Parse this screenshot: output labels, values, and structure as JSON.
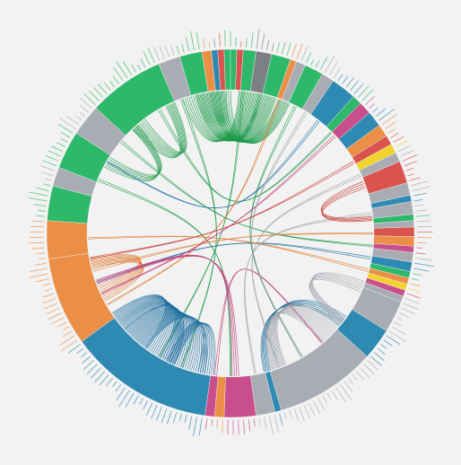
{
  "colors": {
    "background": "#f2f2f2",
    "inner": "#f2f2f2",
    "green": "#2db86a",
    "blue": "#2e8ab3",
    "orange": "#ea8f45",
    "pink": "#c94f8c",
    "gray": "#a9adb3",
    "red": "#d9534f",
    "yellow": "#f2d22e",
    "darkgray": "#7c7f84",
    "link_green": "#1c9a4a",
    "link_blue": "#1e6fa0",
    "link_orange": "#e0792d",
    "link_pink": "#c23b7a",
    "link_gray": "#9ea2a8",
    "link_red": "#c9302c"
  },
  "groups": [
    {
      "start": 262,
      "end": 274,
      "color": "orange"
    },
    {
      "start": 274,
      "end": 285,
      "color": "green"
    },
    {
      "start": 285,
      "end": 291,
      "color": "gray"
    },
    {
      "start": 291,
      "end": 303,
      "color": "green"
    },
    {
      "start": 303,
      "end": 313,
      "color": "gray"
    },
    {
      "start": 313,
      "end": 337,
      "color": "green"
    },
    {
      "start": 337,
      "end": 344,
      "color": "gray"
    },
    {
      "start": 344,
      "end": 351,
      "color": "green"
    },
    {
      "start": 351,
      "end": 354,
      "color": "orange"
    },
    {
      "start": 354,
      "end": 356,
      "color": "blue"
    },
    {
      "start": 356,
      "end": 358,
      "color": "red"
    },
    {
      "start": 358,
      "end": 360,
      "color": "green"
    },
    {
      "start": 0,
      "end": 2,
      "color": "green"
    },
    {
      "start": 2,
      "end": 4,
      "color": "red"
    },
    {
      "start": 4,
      "end": 8,
      "color": "green"
    },
    {
      "start": 8,
      "end": 13,
      "color": "darkgray"
    },
    {
      "start": 13,
      "end": 19,
      "color": "green"
    },
    {
      "start": 19,
      "end": 21,
      "color": "orange"
    },
    {
      "start": 21,
      "end": 24,
      "color": "gray"
    },
    {
      "start": 24,
      "end": 30,
      "color": "green"
    },
    {
      "start": 30,
      "end": 34,
      "color": "gray"
    },
    {
      "start": 34,
      "end": 42,
      "color": "blue"
    },
    {
      "start": 42,
      "end": 45,
      "color": "green"
    },
    {
      "start": 45,
      "end": 49,
      "color": "pink"
    },
    {
      "start": 49,
      "end": 54,
      "color": "blue"
    },
    {
      "start": 54,
      "end": 58,
      "color": "orange"
    },
    {
      "start": 58,
      "end": 61,
      "color": "red"
    },
    {
      "start": 61,
      "end": 64,
      "color": "yellow"
    },
    {
      "start": 64,
      "end": 67,
      "color": "gray"
    },
    {
      "start": 67,
      "end": 74,
      "color": "red"
    },
    {
      "start": 74,
      "end": 78,
      "color": "gray"
    },
    {
      "start": 78,
      "end": 80,
      "color": "blue"
    },
    {
      "start": 80,
      "end": 84,
      "color": "gray"
    },
    {
      "start": 84,
      "end": 86,
      "color": "green"
    },
    {
      "start": 86,
      "end": 88,
      "color": "gray"
    },
    {
      "start": 88,
      "end": 91,
      "color": "red"
    },
    {
      "start": 91,
      "end": 94,
      "color": "orange"
    },
    {
      "start": 94,
      "end": 96,
      "color": "pink"
    },
    {
      "start": 96,
      "end": 99,
      "color": "gray"
    },
    {
      "start": 99,
      "end": 102,
      "color": "blue"
    },
    {
      "start": 102,
      "end": 104,
      "color": "green"
    },
    {
      "start": 104,
      "end": 106,
      "color": "orange"
    },
    {
      "start": 106,
      "end": 108,
      "color": "yellow"
    },
    {
      "start": 108,
      "end": 110,
      "color": "pink"
    },
    {
      "start": 110,
      "end": 112,
      "color": "gray"
    },
    {
      "start": 112,
      "end": 122,
      "color": "gray"
    },
    {
      "start": 122,
      "end": 132,
      "color": "blue"
    },
    {
      "start": 132,
      "end": 164,
      "color": "gray"
    },
    {
      "start": 164,
      "end": 166,
      "color": "blue"
    },
    {
      "start": 166,
      "end": 172,
      "color": "gray"
    },
    {
      "start": 172,
      "end": 182,
      "color": "pink"
    },
    {
      "start": 182,
      "end": 185,
      "color": "orange"
    },
    {
      "start": 185,
      "end": 188,
      "color": "pink"
    },
    {
      "start": 188,
      "end": 234,
      "color": "blue"
    },
    {
      "start": 234,
      "end": 262,
      "color": "orange"
    }
  ],
  "links": [
    {
      "color": "link_green",
      "a": 348,
      "b": 8,
      "w": 18
    },
    {
      "color": "link_green",
      "a": 352,
      "b": 15,
      "w": 14
    },
    {
      "color": "link_green",
      "a": 356,
      "b": 22,
      "w": 10
    },
    {
      "color": "link_green",
      "a": 320,
      "b": 335,
      "w": 8
    },
    {
      "color": "link_green",
      "a": 300,
      "b": 318,
      "w": 6
    },
    {
      "color": "link_green",
      "a": 330,
      "b": 45,
      "w": 2
    },
    {
      "color": "link_green",
      "a": 310,
      "b": 95,
      "w": 2
    },
    {
      "color": "link_green",
      "a": 292,
      "b": 180,
      "w": 2
    },
    {
      "color": "link_green",
      "a": 340,
      "b": 200,
      "w": 2
    },
    {
      "color": "link_green",
      "a": 5,
      "b": 210,
      "w": 2
    },
    {
      "color": "link_green",
      "a": 27,
      "b": 150,
      "w": 2
    },
    {
      "color": "link_blue",
      "a": 200,
      "b": 222,
      "w": 22
    },
    {
      "color": "link_blue",
      "a": 210,
      "b": 232,
      "w": 16
    },
    {
      "color": "link_blue",
      "a": 190,
      "b": 205,
      "w": 8
    },
    {
      "color": "link_blue",
      "a": 128,
      "b": 165,
      "w": 6
    },
    {
      "color": "link_blue",
      "a": 38,
      "b": 300,
      "w": 2
    },
    {
      "color": "link_blue",
      "a": 100,
      "b": 250,
      "w": 2
    },
    {
      "color": "link_orange",
      "a": 245,
      "b": 258,
      "w": 8
    },
    {
      "color": "link_orange",
      "a": 255,
      "b": 90,
      "w": 2
    },
    {
      "color": "link_orange",
      "a": 20,
      "b": 240,
      "w": 2
    },
    {
      "color": "link_orange",
      "a": 105,
      "b": 268,
      "w": 2
    },
    {
      "color": "link_pink",
      "a": 178,
      "b": 250,
      "w": 4
    },
    {
      "color": "link_pink",
      "a": 47,
      "b": 245,
      "w": 2
    },
    {
      "color": "link_pink",
      "a": 186,
      "b": 140,
      "w": 2
    },
    {
      "color": "link_gray",
      "a": 135,
      "b": 160,
      "w": 12
    },
    {
      "color": "link_gray",
      "a": 112,
      "b": 128,
      "w": 6
    },
    {
      "color": "link_gray",
      "a": 66,
      "b": 160,
      "w": 2
    },
    {
      "color": "link_gray",
      "a": 32,
      "b": 150,
      "w": 2
    },
    {
      "color": "link_gray",
      "a": 82,
      "b": 170,
      "w": 2
    },
    {
      "color": "link_red",
      "a": 70,
      "b": 84,
      "w": 4
    },
    {
      "color": "link_red",
      "a": 60,
      "b": 260,
      "w": 2
    }
  ]
}
